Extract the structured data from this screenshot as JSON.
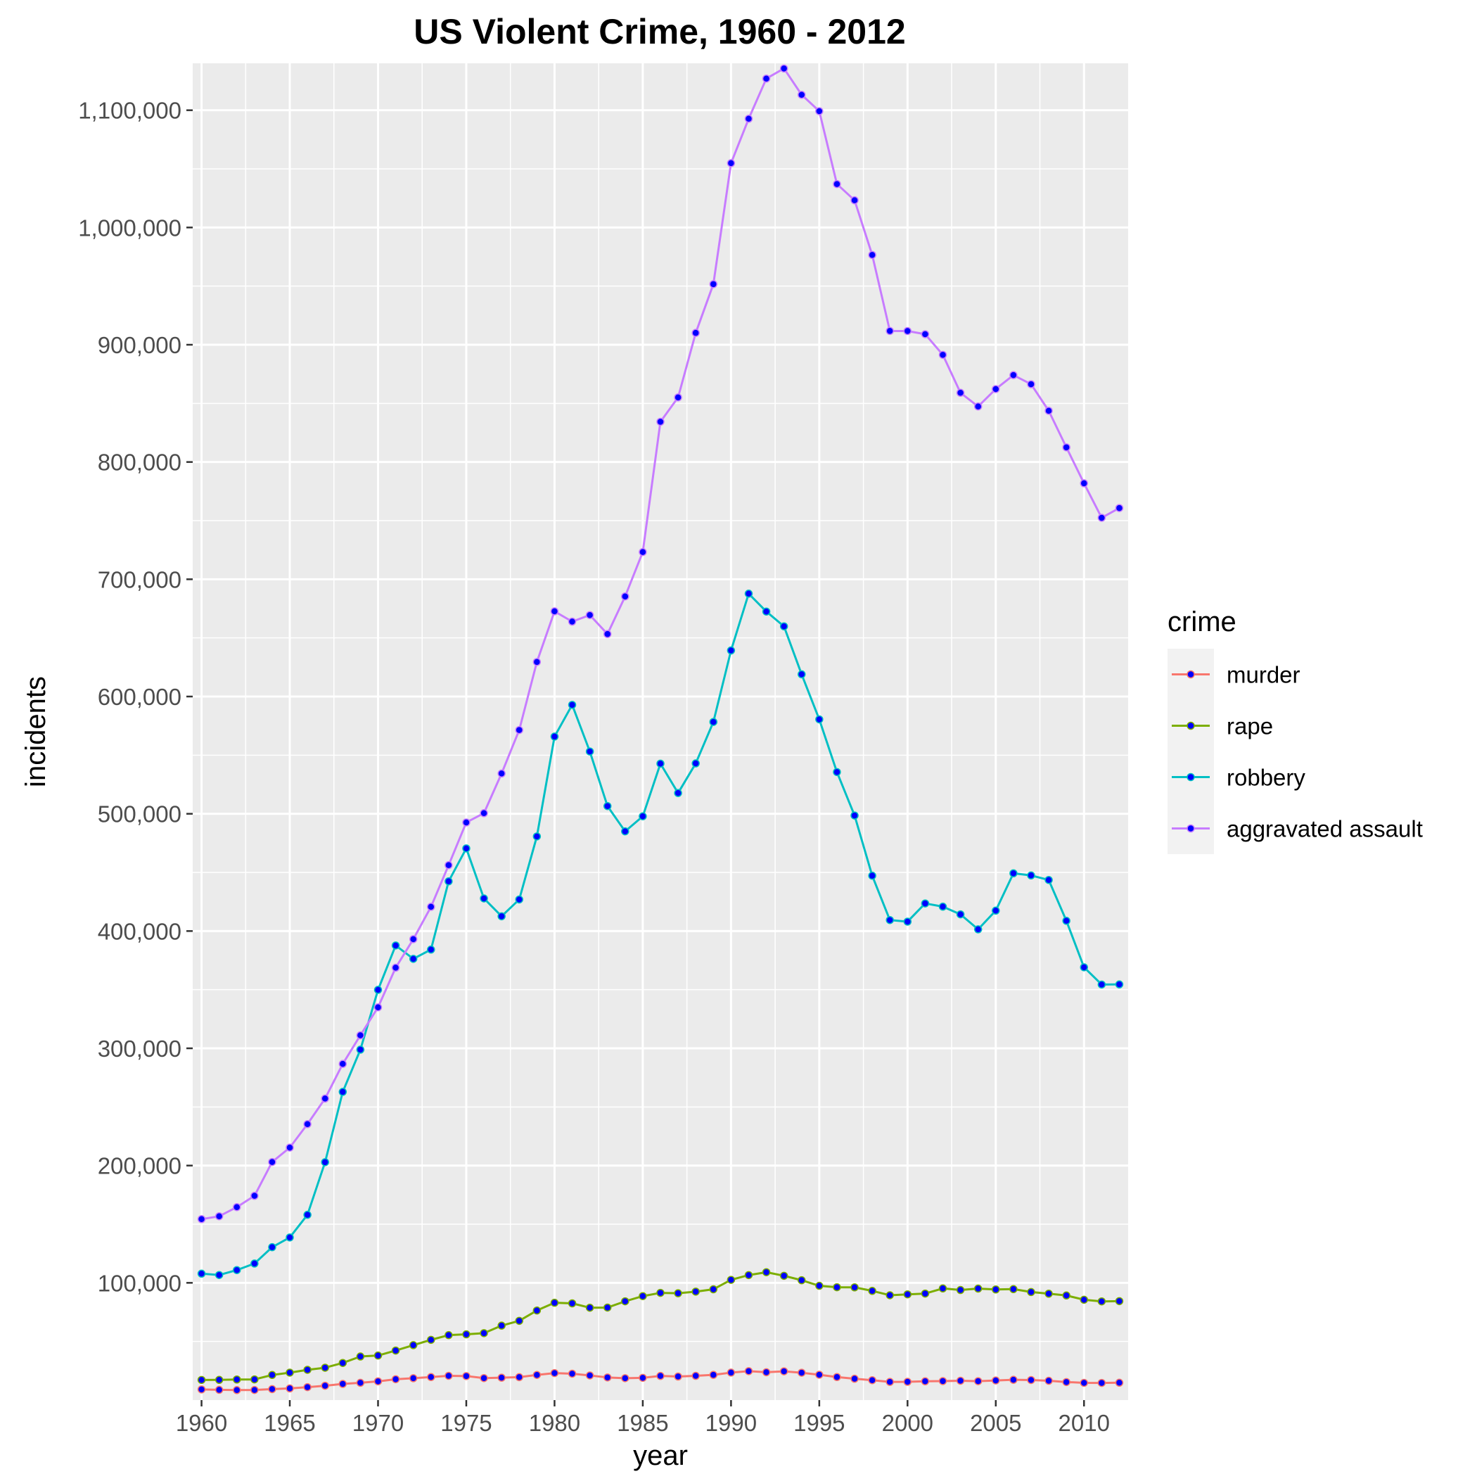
{
  "chart_data": {
    "type": "line",
    "title": "US Violent Crime, 1960 - 2012",
    "xlabel": "year",
    "ylabel": "incidents",
    "xlim": [
      1959.5,
      2012.5
    ],
    "ylim": [
      0,
      1140000
    ],
    "x_ticks": [
      1960,
      1965,
      1970,
      1975,
      1980,
      1985,
      1990,
      1995,
      2000,
      2005,
      2010
    ],
    "y_ticks": [
      100000,
      200000,
      300000,
      400000,
      500000,
      600000,
      700000,
      800000,
      900000,
      1000000,
      1100000
    ],
    "y_tick_labels": [
      "100,000",
      "200,000",
      "300,000",
      "400,000",
      "500,000",
      "600,000",
      "700,000",
      "800,000",
      "900,000",
      "1,000,000",
      "1,100,000"
    ],
    "grid": true,
    "panel_background": "#ebebeb",
    "grid_color": "#ffffff",
    "point_color": "#0000ff",
    "legend": {
      "title": "crime",
      "placement": "right"
    },
    "x": [
      1960,
      1961,
      1962,
      1963,
      1964,
      1965,
      1966,
      1967,
      1968,
      1969,
      1970,
      1971,
      1972,
      1973,
      1974,
      1975,
      1976,
      1977,
      1978,
      1979,
      1980,
      1981,
      1982,
      1983,
      1984,
      1985,
      1986,
      1987,
      1988,
      1989,
      1990,
      1991,
      1992,
      1993,
      1994,
      1995,
      1996,
      1997,
      1998,
      1999,
      2000,
      2001,
      2002,
      2003,
      2004,
      2005,
      2006,
      2007,
      2008,
      2009,
      2010,
      2011,
      2012
    ],
    "series": [
      {
        "name": "murder",
        "color": "#f8766d",
        "values": [
          9110,
          8740,
          8530,
          8640,
          9360,
          9960,
          11040,
          12240,
          13800,
          14760,
          16000,
          17780,
          18670,
          19640,
          20710,
          20510,
          18780,
          19120,
          19560,
          21460,
          23040,
          22520,
          21010,
          19310,
          18690,
          18980,
          20610,
          20100,
          20680,
          21500,
          23440,
          24700,
          23760,
          24530,
          23330,
          21610,
          19650,
          18210,
          16970,
          15520,
          15590,
          16040,
          16230,
          16530,
          16150,
          16740,
          17310,
          17130,
          16470,
          15400,
          14720,
          14660,
          14830
        ]
      },
      {
        "name": "rape",
        "color": "#7cae00",
        "values": [
          17190,
          17220,
          17550,
          17650,
          21420,
          23410,
          25820,
          27620,
          31670,
          37170,
          37990,
          42260,
          46850,
          51400,
          55400,
          56090,
          57080,
          63500,
          67610,
          76390,
          82990,
          82500,
          78770,
          78920,
          84230,
          88670,
          91460,
          91110,
          92490,
          94500,
          102560,
          106590,
          109060,
          106010,
          102220,
          97470,
          96250,
          96150,
          93140,
          89410,
          90180,
          90860,
          95240,
          93880,
          95090,
          94350,
          94640,
          92160,
          90750,
          89240,
          85590,
          84180,
          84380
        ]
      },
      {
        "name": "robbery",
        "color": "#00bfc4",
        "values": [
          107840,
          106670,
          110860,
          116470,
          130390,
          138690,
          157990,
          202910,
          262840,
          298850,
          349860,
          387700,
          376290,
          384220,
          442400,
          470500,
          427810,
          412610,
          426930,
          480700,
          565840,
          592910,
          553130,
          506570,
          485010,
          497870,
          542780,
          517700,
          542970,
          578330,
          639270,
          687730,
          672480,
          659870,
          618950,
          580510,
          535590,
          498530,
          447190,
          409370,
          408020,
          423560,
          420810,
          414240,
          401470,
          417440,
          449250,
          447420,
          443560,
          408740,
          369090,
          354400,
          354520
        ]
      },
      {
        "name": "aggravated assault",
        "color": "#c77cff",
        "values": [
          154320,
          156760,
          164570,
          174210,
          203050,
          215330,
          235330,
          257160,
          286700,
          311090,
          334970,
          368760,
          393090,
          420650,
          456210,
          492620,
          500530,
          534350,
          571460,
          629480,
          672650,
          663900,
          669480,
          653290,
          685350,
          723250,
          834320,
          855090,
          910090,
          951710,
          1054860,
          1092740,
          1126970,
          1135610,
          1113180,
          1099210,
          1037050,
          1023200,
          976580,
          911740,
          911710,
          909020,
          891410,
          859030,
          847380,
          862220,
          874100,
          866360,
          843680,
          812510,
          781840,
          752420,
          760740
        ]
      }
    ]
  }
}
